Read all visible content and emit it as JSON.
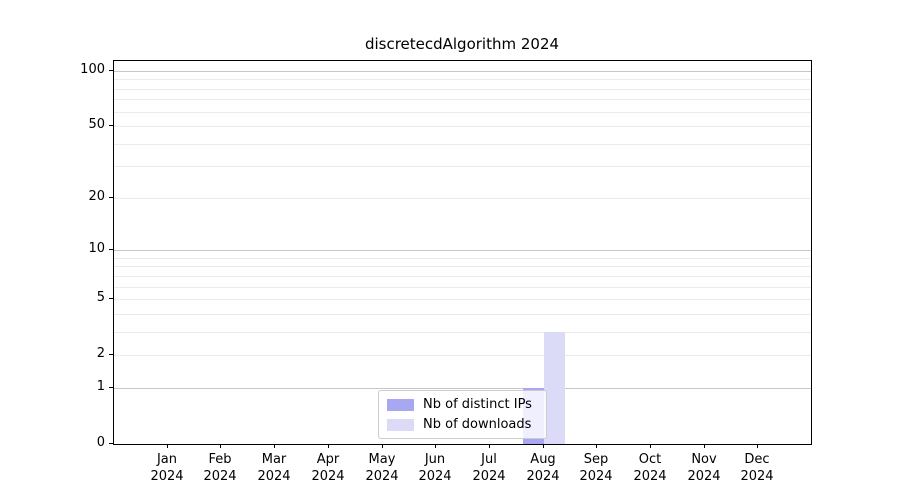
{
  "chart_data": {
    "type": "bar",
    "title": "discretecdAlgorithm 2024",
    "categories": [
      "Jan",
      "Feb",
      "Mar",
      "Apr",
      "May",
      "Jun",
      "Jul",
      "Aug",
      "Sep",
      "Oct",
      "Nov",
      "Dec"
    ],
    "year_label": "2024",
    "series": [
      {
        "name": "Nb of distinct IPs",
        "color": "#A7A7F2",
        "values": [
          0,
          0,
          0,
          0,
          0,
          0,
          0,
          1,
          0,
          0,
          0,
          0
        ]
      },
      {
        "name": "Nb of downloads",
        "color": "#DBDBF8",
        "values": [
          0,
          0,
          0,
          0,
          0,
          0,
          0,
          3,
          0,
          0,
          0,
          0
        ]
      }
    ],
    "xlabel": "",
    "ylabel": "",
    "yticks": [
      0,
      1,
      2,
      5,
      10,
      20,
      50,
      100
    ],
    "major_gridlines": [
      1,
      10,
      100
    ],
    "minor_gridlines": [
      2,
      3,
      4,
      5,
      6,
      7,
      8,
      9,
      20,
      30,
      40,
      50,
      60,
      70,
      80,
      90
    ],
    "scale": "log1p",
    "ylim": [
      0,
      113
    ],
    "grid": "horizontal",
    "legend_position": "lower center"
  },
  "legend": {
    "items": [
      {
        "label": "Nb of distinct IPs",
        "color": "#A7A7F2"
      },
      {
        "label": "Nb of downloads",
        "color": "#DBDBF8"
      }
    ]
  }
}
